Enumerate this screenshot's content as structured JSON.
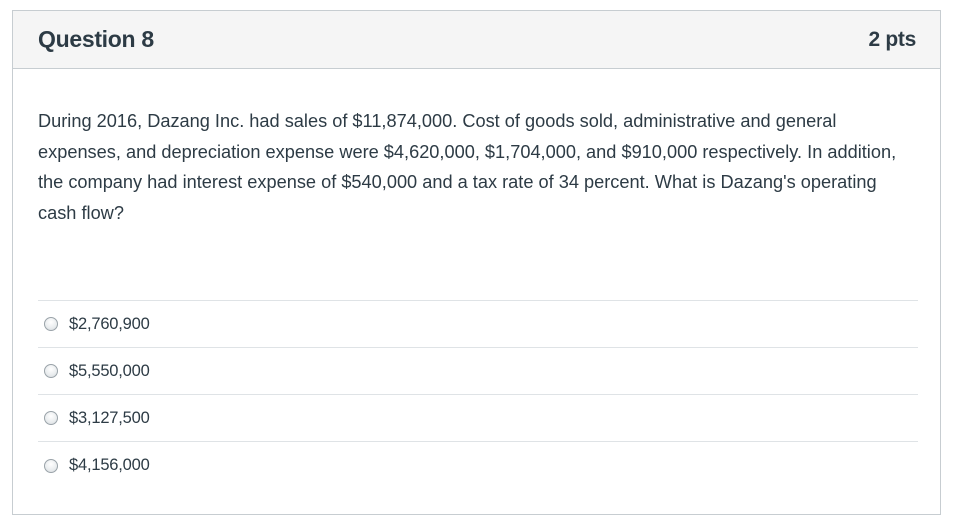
{
  "question": {
    "title": "Question 8",
    "points": "2 pts",
    "text": "During 2016, Dazang Inc. had sales of $11,874,000. Cost of goods sold, administrative and general expenses, and depreciation expense were $4,620,000, $1,704,000, and $910,000 respectively. In addition, the company had interest expense of $540,000 and a tax rate of 34 percent. What is Dazang's operating cash flow?"
  },
  "answers": [
    {
      "label": "$2,760,900",
      "selected": false
    },
    {
      "label": "$5,550,000",
      "selected": false
    },
    {
      "label": "$3,127,500",
      "selected": false
    },
    {
      "label": "$4,156,000",
      "selected": false
    }
  ]
}
